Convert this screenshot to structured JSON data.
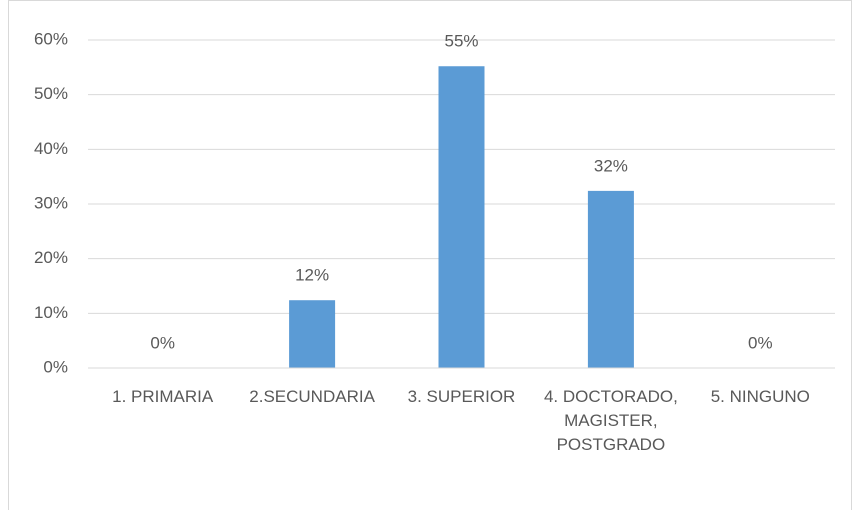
{
  "chart_data": {
    "type": "bar",
    "categories": [
      "1. PRIMARIA",
      "2.SECUNDARIA",
      "3. SUPERIOR",
      "4. DOCTORADO, MAGISTER, POSTGRADO",
      "5. NINGUNO"
    ],
    "values": [
      0,
      12.4,
      55.2,
      32.4,
      0
    ],
    "value_labels": [
      "0%",
      "12%",
      "55%",
      "32%",
      "0%"
    ],
    "color": "#5b9bd5",
    "ylim": [
      0,
      60
    ],
    "yticks": [
      {
        "value": 0,
        "label": "0%"
      },
      {
        "value": 10,
        "label": "10%"
      },
      {
        "value": 20,
        "label": "20%"
      },
      {
        "value": 30,
        "label": "30%"
      },
      {
        "value": 40,
        "label": "40%"
      },
      {
        "value": 50,
        "label": "50%"
      },
      {
        "value": 60,
        "label": "60%"
      }
    ],
    "grid": true
  }
}
